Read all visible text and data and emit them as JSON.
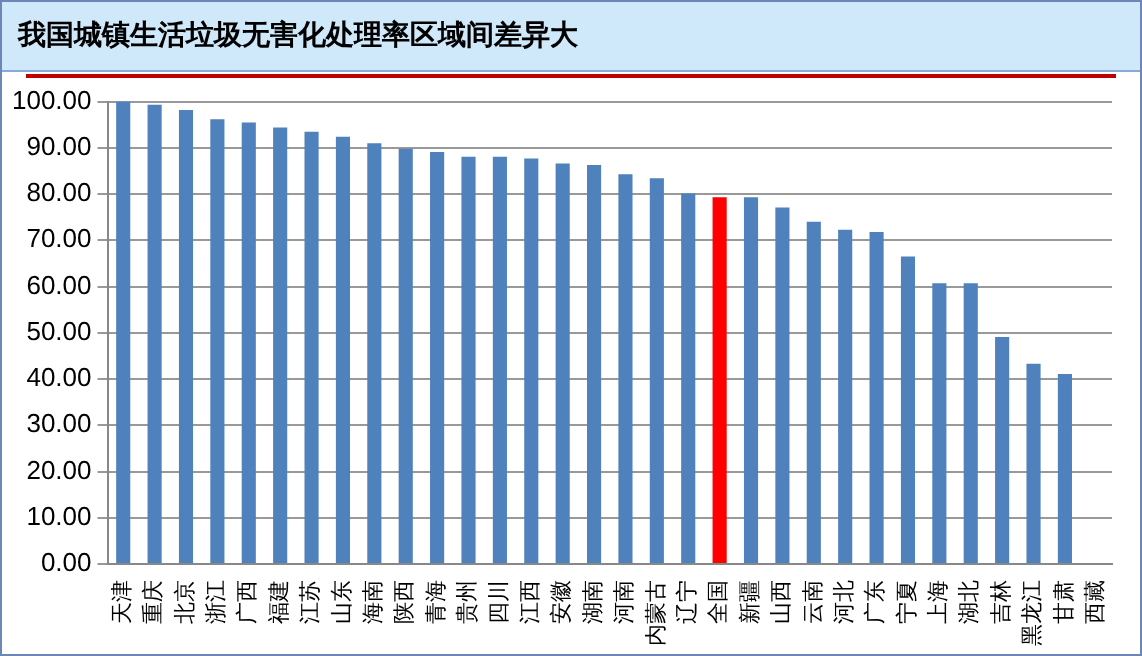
{
  "chart_data": {
    "type": "bar",
    "title": "我国城镇生活垃圾无害化处理率区域间差异大",
    "categories": [
      "天津",
      "重庆",
      "北京",
      "浙江",
      "广西",
      "福建",
      "江苏",
      "山东",
      "海南",
      "陕西",
      "青海",
      "贵州",
      "四川",
      "江西",
      "安徽",
      "湖南",
      "河南",
      "内蒙古",
      "辽宁",
      "全国",
      "新疆",
      "山西",
      "云南",
      "河北",
      "广东",
      "宁夏",
      "上海",
      "湖北",
      "吉林",
      "黑龙江",
      "甘肃",
      "西藏"
    ],
    "values": [
      100,
      99.3,
      98.2,
      96.2,
      95.5,
      94.4,
      93.5,
      92.4,
      91,
      89.8,
      89.1,
      88.1,
      88.1,
      87.7,
      86.6,
      86.3,
      84.3,
      83.4,
      80.1,
      79.3,
      79.3,
      77.1,
      74,
      72.3,
      71.8,
      66.5,
      60.7,
      60.7,
      49.1,
      43.3,
      41.1,
      null
    ],
    "colors": [
      "#4f81bd",
      "#4f81bd",
      "#4f81bd",
      "#4f81bd",
      "#4f81bd",
      "#4f81bd",
      "#4f81bd",
      "#4f81bd",
      "#4f81bd",
      "#4f81bd",
      "#4f81bd",
      "#4f81bd",
      "#4f81bd",
      "#4f81bd",
      "#4f81bd",
      "#4f81bd",
      "#4f81bd",
      "#4f81bd",
      "#4f81bd",
      "#ff0000",
      "#4f81bd",
      "#4f81bd",
      "#4f81bd",
      "#4f81bd",
      "#4f81bd",
      "#4f81bd",
      "#4f81bd",
      "#4f81bd",
      "#4f81bd",
      "#4f81bd",
      "#4f81bd",
      "#4f81bd"
    ],
    "ylim": [
      0,
      100
    ],
    "yticks": [
      {
        "value": 0,
        "label": "0.00"
      },
      {
        "value": 10,
        "label": "10.00"
      },
      {
        "value": 20,
        "label": "20.00"
      },
      {
        "value": 30,
        "label": "30.00"
      },
      {
        "value": 40,
        "label": "40.00"
      },
      {
        "value": 50,
        "label": "50.00"
      },
      {
        "value": 60,
        "label": "60.00"
      },
      {
        "value": 70,
        "label": "70.00"
      },
      {
        "value": 80,
        "label": "80.00"
      },
      {
        "value": 90,
        "label": "90.00"
      },
      {
        "value": 100,
        "label": "100.00"
      }
    ],
    "grid": "y",
    "legend": false
  }
}
